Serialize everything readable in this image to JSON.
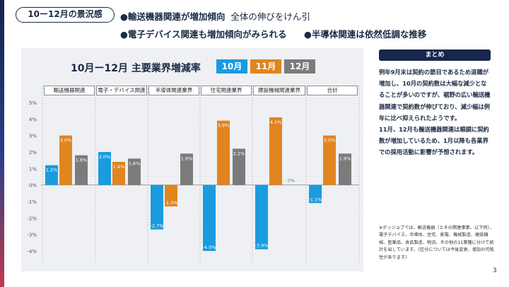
{
  "header": {
    "period_pill": "10ー12月の景況感",
    "bullet1_strong": "●輸送機器関連が増加傾向",
    "bullet1_rest": "全体の伸びをけん引",
    "bullet2": "●電子デバイス関連も増加傾向がみられる",
    "bullet3": "●半導体関連は依然低調な推移"
  },
  "colors": {
    "oct": "#1a9be0",
    "nov": "#e0851f",
    "dec": "#7b7b7b",
    "navy": "#17264d"
  },
  "chart_data": {
    "type": "bar",
    "title": "10月ー12月 主要業界増減率",
    "categories": [
      "輸送機器関連",
      "電子・デバイス関連",
      "半導体関連業界",
      "住宅関連業界",
      "建設機械関連業界",
      "合計"
    ],
    "series": [
      {
        "name": "10月",
        "values": [
          1.2,
          2.0,
          -2.7,
          -4.0,
          -3.9,
          -1.1
        ]
      },
      {
        "name": "11月",
        "values": [
          3.0,
          1.4,
          -1.3,
          3.9,
          4.1,
          3.0
        ]
      },
      {
        "name": "12月",
        "values": [
          1.8,
          1.6,
          1.9,
          2.2,
          0,
          1.9
        ]
      }
    ],
    "data_labels": [
      [
        "1.2%",
        "2.0%",
        "-2.7%",
        "-4.0%",
        "-3.9%",
        "-1.1%"
      ],
      [
        "3.0%",
        "1.4%",
        "-1.3%",
        "3.9%",
        "4.1%",
        "3.0%"
      ],
      [
        "1.8%",
        "1.6%",
        "1.9%",
        "2.2%",
        "0%",
        "1.9%"
      ]
    ],
    "ylim": [
      -4,
      5
    ],
    "yticks": [
      5,
      4,
      3,
      2,
      1,
      0,
      -1,
      -2,
      -3,
      -4
    ],
    "ytick_labels": [
      "5%",
      "4%",
      "3%",
      "2%",
      "1%",
      "0%",
      "-1%",
      "-2%",
      "-3%",
      "-4%"
    ],
    "legend": "top-right"
  },
  "summary": {
    "heading": "まとめ",
    "para1": "例年9月末は契約の節目であるため退職が増加し、10月の契約数は大幅な減少となることが多いのですが、裾野の広い輸送機器関連で契約数が伸びており、減少幅は例年に比べ抑えられたようです。",
    "para2": "11月、12月も輸送機器関連は順調に契約数が増加しているため、1月以降も各業界での採用活動に影響が予想されます。"
  },
  "footnote": "※グッジョブでは、輸送機器（とその関連事業、以下同）、電子デバイス、半導体、住宅、家電、機械製造、建設機械、医薬品、食品製造、物流、その他の11業種に分けて統計を出しています。（区分については今後変更、増加の可能性があります）",
  "page_number": "3"
}
